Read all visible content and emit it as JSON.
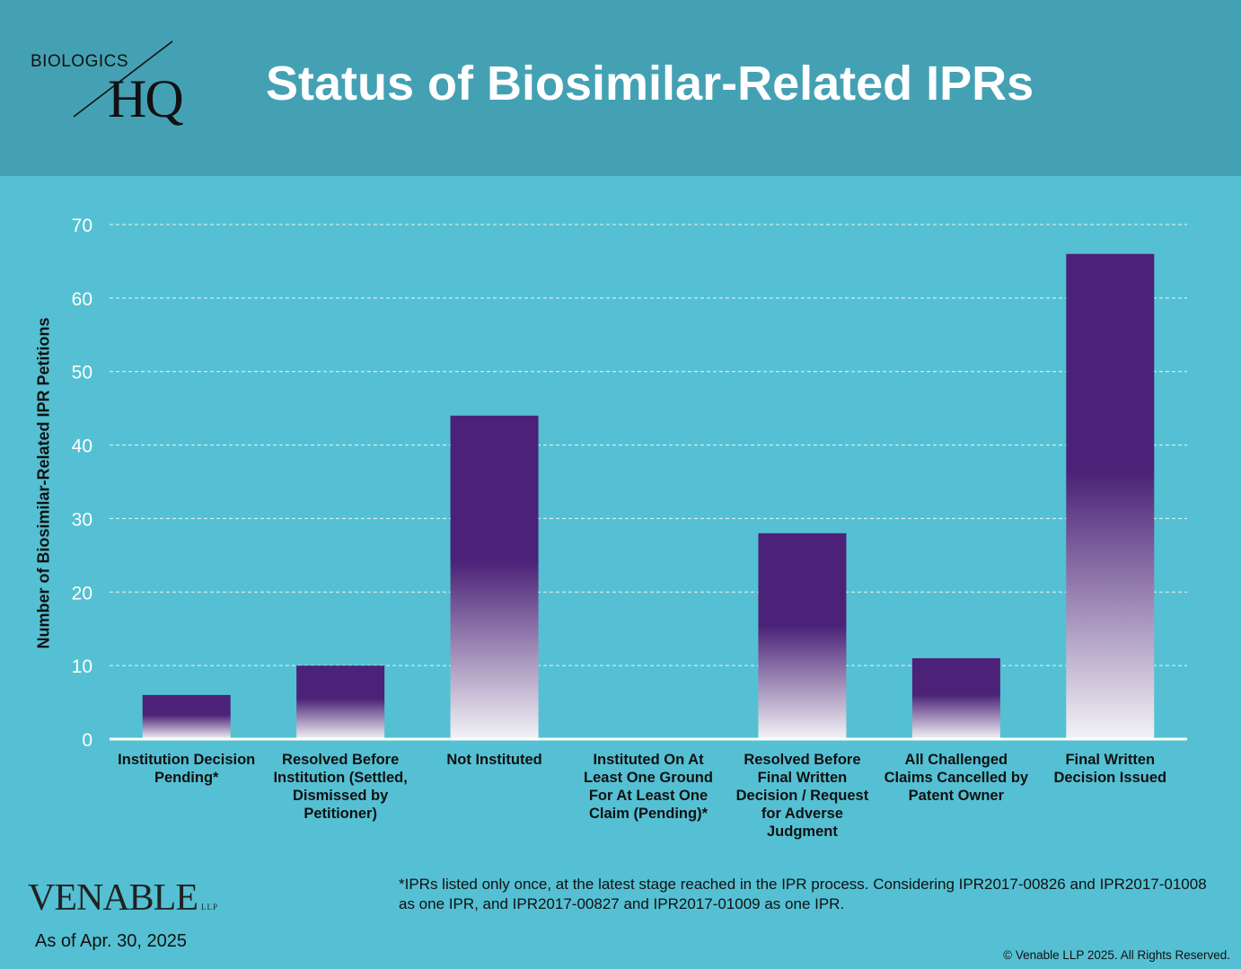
{
  "header": {
    "logo_top": "BIOLOGICS",
    "logo_main": "HQ",
    "title": "Status of Biosimilar-Related IPRs"
  },
  "chart_data": {
    "type": "bar",
    "title": "Status of Biosimilar-Related IPRs",
    "xlabel": "",
    "ylabel": "Number of Biosimilar-Related IPR Petitions",
    "ylim": [
      0,
      70
    ],
    "yticks": [
      0,
      10,
      20,
      30,
      40,
      50,
      60,
      70
    ],
    "grid": true,
    "categories": [
      "Institution Decision Pending*",
      "Resolved Before Institution (Settled, Dismissed by Petitioner)",
      "Not Instituted",
      "Instituted On At Least One Ground For At Least One Claim (Pending)*",
      "Resolved Before Final Written Decision / Request for Adverse Judgment",
      "All Challenged Claims Cancelled by Patent Owner",
      "Final Written Decision Issued"
    ],
    "values": [
      6,
      10,
      44,
      0,
      28,
      11,
      66
    ],
    "colors": {
      "bar": "#4b2277",
      "bar_fade": "#f3f3f6",
      "grid": "#e9f6fa",
      "axis": "#ffffff"
    }
  },
  "footer": {
    "brand": "VENABLE",
    "brand_suffix": "LLP",
    "as_of": "As of Apr. 30, 2025",
    "footnote": "*IPRs listed only once, at the latest stage reached in the IPR process.  Considering IPR2017-00826 and IPR2017-01008 as one IPR, and IPR2017-00827 and IPR2017-01009 as one IPR.",
    "copyright": "© Venable LLP 2025. All Rights Reserved."
  }
}
